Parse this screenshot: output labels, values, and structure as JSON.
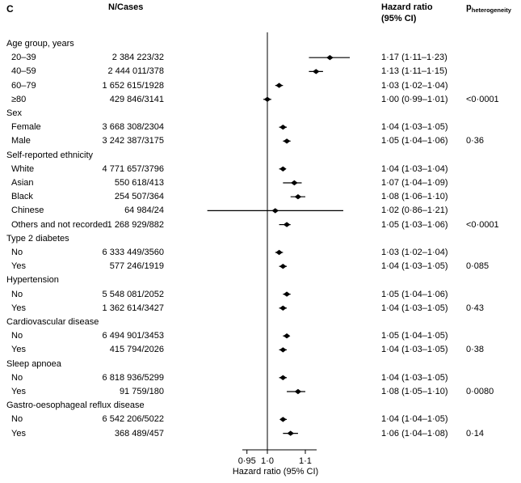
{
  "panel_label": "C",
  "columns": {
    "n_cases": "N/Cases",
    "hazard_ratio_line1": "Hazard ratio",
    "hazard_ratio_line2": "(95% CI)",
    "p_label": "p",
    "p_sub": "heterogeneity"
  },
  "chart_data": {
    "type": "forest",
    "xscale": "log",
    "reference_value": 1.0,
    "xlabel": "Hazard ratio (95% CI)",
    "xlim": [
      0.86,
      1.23
    ],
    "xticks": [
      {
        "value": 0.95,
        "label": "0·95"
      },
      {
        "value": 1.0,
        "label": "1·0"
      },
      {
        "value": 1.1,
        "label": "1·1"
      }
    ],
    "groups": [
      {
        "label": "Age group, years",
        "p": "<0·0001",
        "rows": [
          {
            "label": "20–39",
            "n": "2 384 223/32",
            "hr": 1.17,
            "lo": 1.11,
            "hi": 1.23,
            "text": "1·17 (1·11–1·23)"
          },
          {
            "label": "40–59",
            "n": "2 444 011/378",
            "hr": 1.13,
            "lo": 1.11,
            "hi": 1.15,
            "text": "1·13 (1·11–1·15)"
          },
          {
            "label": "60–79",
            "n": "1 652 615/1928",
            "hr": 1.03,
            "lo": 1.02,
            "hi": 1.04,
            "text": "1·03 (1·02–1·04)"
          },
          {
            "label": "≥80",
            "n": "429 846/3141",
            "hr": 1.0,
            "lo": 0.99,
            "hi": 1.01,
            "text": "1·00 (0·99–1·01)"
          }
        ]
      },
      {
        "label": "Sex",
        "p": "0·36",
        "rows": [
          {
            "label": "Female",
            "n": "3 668 308/2304",
            "hr": 1.04,
            "lo": 1.03,
            "hi": 1.05,
            "text": "1·04 (1·03–1·05)"
          },
          {
            "label": "Male",
            "n": "3 242 387/3175",
            "hr": 1.05,
            "lo": 1.04,
            "hi": 1.06,
            "text": "1·05 (1·04–1·06)"
          }
        ]
      },
      {
        "label": "Self-reported ethnicity",
        "p": "<0·0001",
        "rows": [
          {
            "label": "White",
            "n": "4 771 657/3796",
            "hr": 1.04,
            "lo": 1.03,
            "hi": 1.04,
            "text": "1·04 (1·03–1·04)"
          },
          {
            "label": "Asian",
            "n": "550 618/413",
            "hr": 1.07,
            "lo": 1.04,
            "hi": 1.09,
            "text": "1·07 (1·04–1·09)"
          },
          {
            "label": "Black",
            "n": "254 507/364",
            "hr": 1.08,
            "lo": 1.06,
            "hi": 1.1,
            "text": "1·08 (1·06–1·10)"
          },
          {
            "label": "Chinese",
            "n": "64 984/24",
            "hr": 1.02,
            "lo": 0.86,
            "hi": 1.21,
            "text": "1·02 (0·86–1·21)"
          },
          {
            "label": "Others and not recorded",
            "n": "1 268 929/882",
            "hr": 1.05,
            "lo": 1.03,
            "hi": 1.06,
            "text": "1·05 (1·03–1·06)"
          }
        ]
      },
      {
        "label": "Type 2 diabetes",
        "p": "0·085",
        "rows": [
          {
            "label": "No",
            "n": "6 333 449/3560",
            "hr": 1.03,
            "lo": 1.02,
            "hi": 1.04,
            "text": "1·03 (1·02–1·04)"
          },
          {
            "label": "Yes",
            "n": "577 246/1919",
            "hr": 1.04,
            "lo": 1.03,
            "hi": 1.05,
            "text": "1·04 (1·03–1·05)"
          }
        ]
      },
      {
        "label": "Hypertension",
        "p": "0·43",
        "rows": [
          {
            "label": "No",
            "n": "5 548 081/2052",
            "hr": 1.05,
            "lo": 1.04,
            "hi": 1.06,
            "text": "1·05 (1·04–1·06)"
          },
          {
            "label": "Yes",
            "n": "1 362 614/3427",
            "hr": 1.04,
            "lo": 1.03,
            "hi": 1.05,
            "text": "1·04 (1·03–1·05)"
          }
        ]
      },
      {
        "label": "Cardiovascular disease",
        "p": "0·38",
        "rows": [
          {
            "label": "No",
            "n": "6 494 901/3453",
            "hr": 1.05,
            "lo": 1.04,
            "hi": 1.05,
            "text": "1·05 (1·04–1·05)"
          },
          {
            "label": "Yes",
            "n": "415 794/2026",
            "hr": 1.04,
            "lo": 1.03,
            "hi": 1.05,
            "text": "1·04 (1·03–1·05)"
          }
        ]
      },
      {
        "label": "Sleep apnoea",
        "p": "0·0080",
        "rows": [
          {
            "label": "No",
            "n": "6 818 936/5299",
            "hr": 1.04,
            "lo": 1.03,
            "hi": 1.05,
            "text": "1·04 (1·03–1·05)"
          },
          {
            "label": "Yes",
            "n": "91 759/180",
            "hr": 1.08,
            "lo": 1.05,
            "hi": 1.1,
            "text": "1·08 (1·05–1·10)"
          }
        ]
      },
      {
        "label": "Gastro-oesophageal reflux disease",
        "p": "0·14",
        "rows": [
          {
            "label": "No",
            "n": "6 542 206/5022",
            "hr": 1.04,
            "lo": 1.04,
            "hi": 1.05,
            "text": "1·04 (1·04–1·05)"
          },
          {
            "label": "Yes",
            "n": "368 489/457",
            "hr": 1.06,
            "lo": 1.04,
            "hi": 1.08,
            "text": "1·06 (1·04–1·08)"
          }
        ]
      }
    ]
  }
}
